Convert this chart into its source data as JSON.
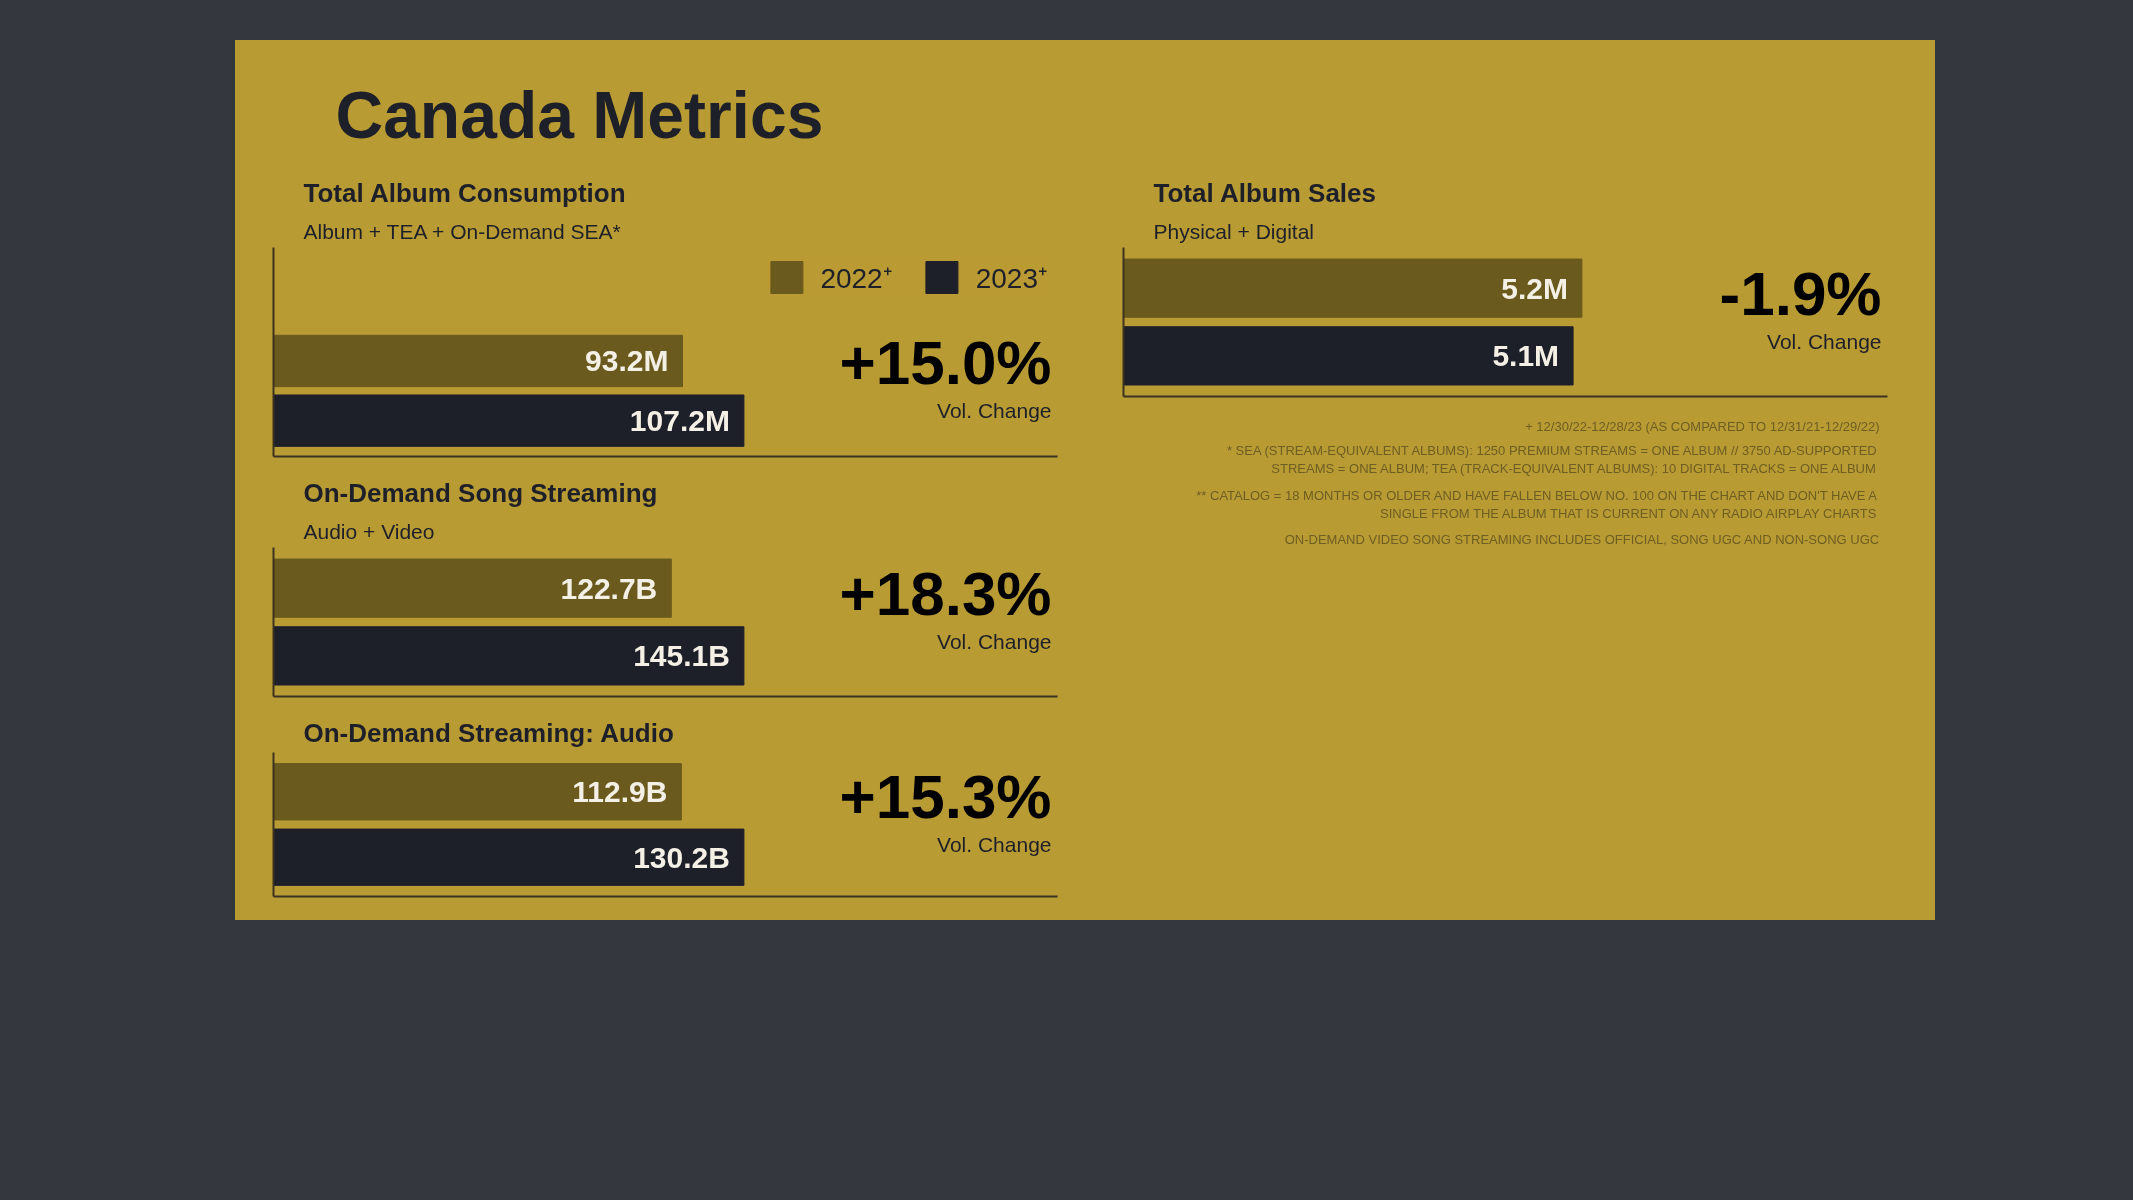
{
  "chart_data": [
    {
      "type": "other",
      "title": "Canada Metrics"
    },
    {
      "type": "bar",
      "orientation": "horizontal",
      "title": "Total Album Consumption",
      "subtitle": "Album + TEA + On-Demand SEA*",
      "categories": [
        null
      ],
      "legend": "top",
      "annotations": [
        "+15.0%",
        "Vol. Change"
      ],
      "series": [
        {
          "name": "2022⁺",
          "color": "#6b5a1e",
          "values": [
            93.2
          ],
          "value_labels": [
            "93.2M"
          ]
        },
        {
          "name": "2023⁺",
          "color": "#1d1f29",
          "values": [
            107.2
          ],
          "value_labels": [
            "107.2M"
          ]
        }
      ]
    },
    {
      "type": "bar",
      "orientation": "horizontal",
      "title": "Total Album Sales",
      "subtitle": "Physical + Digital",
      "categories": [
        null
      ],
      "annotations": [
        "-1.9%",
        "Vol. Change"
      ],
      "series": [
        {
          "color": "#6b5a1e",
          "values": [
            5.2
          ],
          "value_labels": [
            "5.2M"
          ]
        },
        {
          "color": "#1d1f29",
          "values": [
            5.1
          ],
          "value_labels": [
            "5.1M"
          ]
        }
      ]
    },
    {
      "type": "bar",
      "orientation": "horizontal",
      "title": "On-Demand Song Streaming",
      "subtitle": "Audio + Video",
      "categories": [
        null
      ],
      "annotations": [
        "+18.3%",
        "Vol. Change"
      ],
      "series": [
        {
          "color": "#6b5a1e",
          "values": [
            122.7
          ],
          "value_labels": [
            "122.7B"
          ]
        },
        {
          "color": "#1d1f29",
          "values": [
            145.1
          ],
          "value_labels": [
            "145.1B"
          ]
        }
      ]
    },
    {
      "type": "bar",
      "orientation": "horizontal",
      "title": "On-Demand Streaming: Audio",
      "categories": [
        null
      ],
      "annotations": [
        "+15.3%",
        "Vol. Change"
      ],
      "series": [
        {
          "color": "#6b5a1e",
          "values": [
            112.9
          ],
          "value_labels": [
            "112.9B"
          ]
        },
        {
          "color": "#1d1f29",
          "values": [
            130.2
          ],
          "value_labels": [
            "130.2B"
          ]
        }
      ]
    },
    {
      "type": "other",
      "annotations": [
        "+ 12/30/22-12/28/23 (AS COMPARED TO 12/31/21-12/29/22)",
        "* SEA (STREAM-EQUIVALENT ALBUMS): 1250 PREMIUM STREAMS = ONE ALBUM // 3750 AD-SUPPORTED STREAMS = ONE ALBUM; TEA (TRACK-EQUIVALENT ALBUMS): 10 DIGITAL TRACKS = ONE ALBUM",
        "** CATALOG = 18 MONTHS OR OLDER AND HAVE FALLEN BELOW NO. 100 ON THE CHART AND DON'T HAVE A SINGLE FROM THE ALBUM THAT IS CURRENT ON ANY RADIO AIRPLAY CHARTS",
        "ON-DEMAND VIDEO SONG STREAMING INCLUDES OFFICIAL, SONG UGC AND NON-SONG UGC"
      ]
    }
  ]
}
